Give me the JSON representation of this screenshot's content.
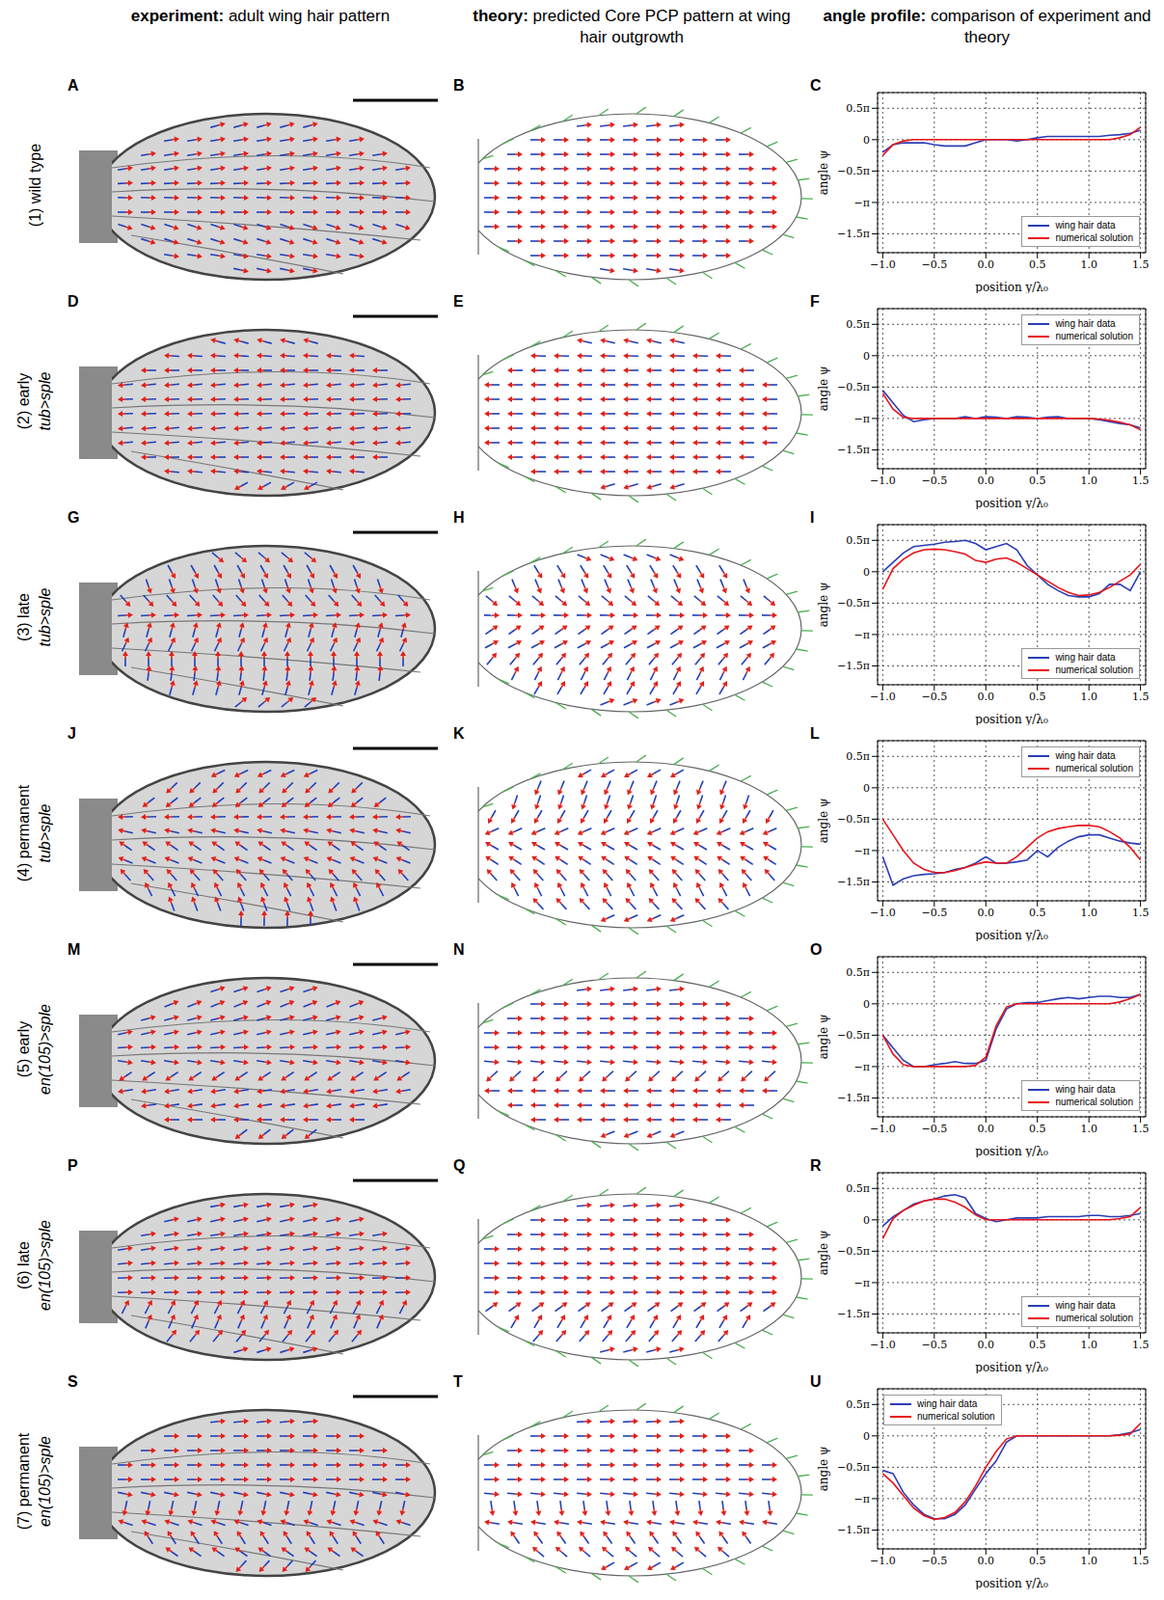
{
  "header": {
    "columns": [
      {
        "bold": "experiment:",
        "text": "adult wing hair pattern"
      },
      {
        "bold": "theory:",
        "text": "predicted Core PCP pattern at wing hair outgrowth"
      },
      {
        "bold": "angle profile:",
        "text": "comparison of experiment and theory"
      }
    ]
  },
  "rows": [
    {
      "label": "(1) wild type",
      "letters": [
        "A",
        "B",
        "C"
      ]
    },
    {
      "label": "(2) early",
      "genotype": "tub>sple",
      "letters": [
        "D",
        "E",
        "F"
      ]
    },
    {
      "label": "(3) late",
      "genotype": "tub>sple",
      "letters": [
        "G",
        "H",
        "I"
      ]
    },
    {
      "label": "(4) permanent",
      "genotype": "tub>sple",
      "letters": [
        "J",
        "K",
        "L"
      ]
    },
    {
      "label": "(5) early",
      "genotype": "en(105)>sple",
      "letters": [
        "M",
        "N",
        "O"
      ]
    },
    {
      "label": "(6) late",
      "genotype": "en(105)>sple",
      "letters": [
        "P",
        "Q",
        "R"
      ]
    },
    {
      "label": "(7) permanent",
      "genotype": "en(105)>sple",
      "letters": [
        "S",
        "T",
        "U"
      ]
    }
  ],
  "chart_data": [
    {
      "type": "line",
      "x_label": "position y/λ₀",
      "y_label": "angle ψ",
      "grid": true,
      "legend": "lower right",
      "xlim": [
        -1.05,
        1.55
      ],
      "ylim": [
        -1.8,
        0.75
      ],
      "xticks": [
        {
          "value": -1,
          "label": "−1.0"
        },
        {
          "value": -0.5,
          "label": "−0.5"
        },
        {
          "value": 0,
          "label": "0.0"
        },
        0.5,
        {
          "value": 1,
          "label": "1.0"
        },
        1.5
      ],
      "yticks": [
        {
          "value": 0.5,
          "label": "0.5π"
        },
        0,
        {
          "value": -0.5,
          "label": "−0.5π"
        },
        {
          "value": -1,
          "label": "−π"
        },
        {
          "value": -1.5,
          "label": "−1.5π"
        }
      ],
      "x": [
        -1,
        -0.9,
        -0.8,
        -0.7,
        -0.6,
        -0.5,
        -0.4,
        -0.3,
        -0.2,
        -0.1,
        0,
        0.1,
        0.2,
        0.3,
        0.4,
        0.5,
        0.6,
        0.7,
        0.8,
        0.9,
        1,
        1.1,
        1.2,
        1.3,
        1.4,
        1.5
      ],
      "series": [
        {
          "name": "wing hair data",
          "color": "#2a3db5",
          "values": [
            -0.2,
            -0.08,
            -0.05,
            -0.05,
            -0.05,
            -0.08,
            -0.1,
            -0.1,
            -0.1,
            -0.05,
            0,
            0,
            0,
            -0.02,
            0,
            0.03,
            0.05,
            0.05,
            0.05,
            0.05,
            0.05,
            0.05,
            0.07,
            0.08,
            0.1,
            0.15
          ]
        },
        {
          "name": "numerical solution",
          "color": "#e8141a",
          "values": [
            -0.25,
            -0.08,
            -0.02,
            0,
            0,
            0,
            0,
            0,
            0,
            0,
            0,
            0,
            0,
            0,
            0,
            0,
            0,
            0,
            0,
            0,
            0,
            0,
            0,
            0.03,
            0.08,
            0.2
          ]
        }
      ]
    },
    {
      "type": "line",
      "x_label": "position y/λ₀",
      "y_label": "angle ψ",
      "grid": true,
      "legend": "upper right",
      "xlim": [
        -1.05,
        1.55
      ],
      "ylim": [
        -1.8,
        0.75
      ],
      "xticks": [
        {
          "value": -1,
          "label": "−1.0"
        },
        {
          "value": -0.5,
          "label": "−0.5"
        },
        {
          "value": 0,
          "label": "0.0"
        },
        0.5,
        {
          "value": 1,
          "label": "1.0"
        },
        1.5
      ],
      "yticks": [
        {
          "value": 0.5,
          "label": "0.5π"
        },
        0,
        {
          "value": -0.5,
          "label": "−0.5π"
        },
        {
          "value": -1,
          "label": "−π"
        },
        {
          "value": -1.5,
          "label": "−1.5π"
        }
      ],
      "x": [
        -1,
        -0.9,
        -0.8,
        -0.7,
        -0.6,
        -0.5,
        -0.4,
        -0.3,
        -0.2,
        -0.1,
        0,
        0.1,
        0.2,
        0.3,
        0.4,
        0.5,
        0.6,
        0.7,
        0.8,
        0.9,
        1,
        1.1,
        1.2,
        1.3,
        1.4,
        1.5
      ],
      "series": [
        {
          "name": "wing hair data",
          "color": "#2a3db5",
          "values": [
            -0.55,
            -0.75,
            -0.95,
            -1.05,
            -1.02,
            -1,
            -1,
            -1,
            -0.97,
            -1,
            -0.97,
            -0.98,
            -1,
            -0.97,
            -0.98,
            -1,
            -0.98,
            -0.97,
            -1,
            -1,
            -1,
            -1.02,
            -1.05,
            -1.08,
            -1.1,
            -1.15
          ]
        },
        {
          "name": "numerical solution",
          "color": "#e8141a",
          "values": [
            -0.6,
            -0.85,
            -0.98,
            -1,
            -1,
            -1,
            -1,
            -1,
            -1,
            -1,
            -1,
            -1,
            -1,
            -1,
            -1,
            -1,
            -1,
            -1,
            -1,
            -1,
            -1,
            -1.01,
            -1.03,
            -1.06,
            -1.1,
            -1.18
          ]
        }
      ]
    },
    {
      "type": "line",
      "x_label": "position y/λ₀",
      "y_label": "angle ψ",
      "grid": true,
      "legend": "lower right",
      "xlim": [
        -1.05,
        1.55
      ],
      "ylim": [
        -1.8,
        0.75
      ],
      "xticks": [
        {
          "value": -1,
          "label": "−1.0"
        },
        {
          "value": -0.5,
          "label": "−0.5"
        },
        {
          "value": 0,
          "label": "0.0"
        },
        0.5,
        {
          "value": 1,
          "label": "1.0"
        },
        1.5
      ],
      "yticks": [
        {
          "value": 0.5,
          "label": "0.5π"
        },
        0,
        {
          "value": -0.5,
          "label": "−0.5π"
        },
        {
          "value": -1,
          "label": "−π"
        },
        {
          "value": -1.5,
          "label": "−1.5π"
        }
      ],
      "x": [
        -1,
        -0.9,
        -0.8,
        -0.7,
        -0.6,
        -0.5,
        -0.4,
        -0.3,
        -0.2,
        -0.1,
        0,
        0.1,
        0.2,
        0.3,
        0.4,
        0.5,
        0.6,
        0.7,
        0.8,
        0.9,
        1,
        1.1,
        1.2,
        1.3,
        1.4,
        1.5
      ],
      "series": [
        {
          "name": "wing hair data",
          "color": "#2a3db5",
          "values": [
            0,
            0.15,
            0.3,
            0.4,
            0.42,
            0.44,
            0.47,
            0.48,
            0.5,
            0.45,
            0.35,
            0.4,
            0.45,
            0.35,
            0.1,
            -0.05,
            -0.2,
            -0.3,
            -0.38,
            -0.4,
            -0.4,
            -0.35,
            -0.2,
            -0.2,
            -0.3,
            0
          ]
        },
        {
          "name": "numerical solution",
          "color": "#e8141a",
          "values": [
            -0.28,
            0.05,
            0.2,
            0.3,
            0.35,
            0.36,
            0.35,
            0.32,
            0.28,
            0.18,
            0.15,
            0.2,
            0.22,
            0.15,
            0.05,
            -0.05,
            -0.15,
            -0.25,
            -0.33,
            -0.38,
            -0.37,
            -0.33,
            -0.25,
            -0.15,
            -0.05,
            0.12
          ]
        }
      ]
    },
    {
      "type": "line",
      "x_label": "position y/λ₀",
      "y_label": "angle ψ",
      "grid": true,
      "legend": "upper right",
      "xlim": [
        -1.05,
        1.55
      ],
      "ylim": [
        -1.8,
        0.75
      ],
      "xticks": [
        {
          "value": -1,
          "label": "−1.0"
        },
        {
          "value": -0.5,
          "label": "−0.5"
        },
        {
          "value": 0,
          "label": "0.0"
        },
        0.5,
        {
          "value": 1,
          "label": "1.0"
        },
        1.5
      ],
      "yticks": [
        {
          "value": 0.5,
          "label": "0.5π"
        },
        0,
        {
          "value": -0.5,
          "label": "−0.5π"
        },
        {
          "value": -1,
          "label": "−π"
        },
        {
          "value": -1.5,
          "label": "−1.5π"
        }
      ],
      "x": [
        -1,
        -0.9,
        -0.8,
        -0.7,
        -0.6,
        -0.5,
        -0.4,
        -0.3,
        -0.2,
        -0.1,
        0,
        0.1,
        0.2,
        0.3,
        0.4,
        0.5,
        0.6,
        0.7,
        0.8,
        0.9,
        1,
        1.1,
        1.2,
        1.3,
        1.4,
        1.5
      ],
      "series": [
        {
          "name": "wing hair data",
          "color": "#2a3db5",
          "values": [
            -1.1,
            -1.55,
            -1.45,
            -1.4,
            -1.38,
            -1.37,
            -1.35,
            -1.3,
            -1.27,
            -1.2,
            -1.1,
            -1.2,
            -1.2,
            -1.18,
            -1.15,
            -1,
            -1.1,
            -0.95,
            -0.85,
            -0.78,
            -0.75,
            -0.75,
            -0.8,
            -0.85,
            -0.88,
            -0.9
          ]
        },
        {
          "name": "numerical solution",
          "color": "#e8141a",
          "values": [
            -0.5,
            -0.75,
            -1,
            -1.2,
            -1.3,
            -1.35,
            -1.35,
            -1.32,
            -1.27,
            -1.22,
            -1.18,
            -1.2,
            -1.2,
            -1.1,
            -0.95,
            -0.8,
            -0.7,
            -0.65,
            -0.62,
            -0.6,
            -0.6,
            -0.62,
            -0.7,
            -0.8,
            -0.95,
            -1.15
          ]
        }
      ]
    },
    {
      "type": "line",
      "x_label": "position y/λ₀",
      "y_label": "angle ψ",
      "grid": true,
      "legend": "lower right",
      "xlim": [
        -1.05,
        1.55
      ],
      "ylim": [
        -1.8,
        0.75
      ],
      "xticks": [
        {
          "value": -1,
          "label": "−1.0"
        },
        {
          "value": -0.5,
          "label": "−0.5"
        },
        {
          "value": 0,
          "label": "0.0"
        },
        0.5,
        {
          "value": 1,
          "label": "1.0"
        },
        1.5
      ],
      "yticks": [
        {
          "value": 0.5,
          "label": "0.5π"
        },
        0,
        {
          "value": -0.5,
          "label": "−0.5π"
        },
        {
          "value": -1,
          "label": "−π"
        },
        {
          "value": -1.5,
          "label": "−1.5π"
        }
      ],
      "x": [
        -1,
        -0.9,
        -0.8,
        -0.7,
        -0.6,
        -0.5,
        -0.4,
        -0.3,
        -0.2,
        -0.1,
        0,
        0.1,
        0.2,
        0.3,
        0.4,
        0.5,
        0.6,
        0.7,
        0.8,
        0.9,
        1,
        1.1,
        1.2,
        1.3,
        1.4,
        1.5
      ],
      "series": [
        {
          "name": "wing hair data",
          "color": "#2a3db5",
          "values": [
            -0.5,
            -0.7,
            -0.9,
            -1,
            -1,
            -0.97,
            -0.95,
            -0.92,
            -0.95,
            -0.95,
            -0.9,
            -0.4,
            -0.08,
            0,
            0.02,
            0.02,
            0.05,
            0.08,
            0.1,
            0.08,
            0.1,
            0.12,
            0.12,
            0.1,
            0.1,
            0.15
          ]
        },
        {
          "name": "numerical solution",
          "color": "#e8141a",
          "values": [
            -0.5,
            -0.8,
            -0.97,
            -1,
            -1,
            -1,
            -1,
            -1,
            -1,
            -0.98,
            -0.85,
            -0.35,
            -0.05,
            0,
            0,
            0,
            0,
            0,
            0,
            0,
            0,
            0,
            0,
            0.03,
            0.08,
            0.15
          ]
        }
      ]
    },
    {
      "type": "line",
      "x_label": "position y/λ₀",
      "y_label": "angle ψ",
      "grid": true,
      "legend": "lower right",
      "xlim": [
        -1.05,
        1.55
      ],
      "ylim": [
        -1.8,
        0.75
      ],
      "xticks": [
        {
          "value": -1,
          "label": "−1.0"
        },
        {
          "value": -0.5,
          "label": "−0.5"
        },
        {
          "value": 0,
          "label": "0.0"
        },
        0.5,
        {
          "value": 1,
          "label": "1.0"
        },
        1.5
      ],
      "yticks": [
        {
          "value": 0.5,
          "label": "0.5π"
        },
        0,
        {
          "value": -0.5,
          "label": "−0.5π"
        },
        {
          "value": -1,
          "label": "−π"
        },
        {
          "value": -1.5,
          "label": "−1.5π"
        }
      ],
      "x": [
        -1,
        -0.9,
        -0.8,
        -0.7,
        -0.6,
        -0.5,
        -0.4,
        -0.3,
        -0.2,
        -0.1,
        0,
        0.1,
        0.2,
        0.3,
        0.4,
        0.5,
        0.6,
        0.7,
        0.8,
        0.9,
        1,
        1.1,
        1.2,
        1.3,
        1.4,
        1.5
      ],
      "series": [
        {
          "name": "wing hair data",
          "color": "#2a3db5",
          "values": [
            -0.1,
            0.05,
            0.15,
            0.25,
            0.3,
            0.33,
            0.38,
            0.4,
            0.35,
            0.1,
            0.02,
            -0.03,
            0,
            0.03,
            0.03,
            0.03,
            0.05,
            0.05,
            0.05,
            0.05,
            0.07,
            0.07,
            0.05,
            0.05,
            0.07,
            0.1
          ]
        },
        {
          "name": "numerical solution",
          "color": "#e8141a",
          "values": [
            -0.3,
            0.02,
            0.15,
            0.23,
            0.3,
            0.33,
            0.33,
            0.28,
            0.2,
            0.08,
            0,
            0,
            0,
            0,
            0,
            0,
            0,
            0,
            0,
            0,
            0,
            0,
            0,
            0.02,
            0.05,
            0.2
          ]
        }
      ]
    },
    {
      "type": "line",
      "x_label": "position y/λ₀",
      "y_label": "angle ψ",
      "grid": true,
      "legend": "upper left",
      "xlim": [
        -1.05,
        1.55
      ],
      "ylim": [
        -1.8,
        0.75
      ],
      "xticks": [
        {
          "value": -1,
          "label": "−1.0"
        },
        {
          "value": -0.5,
          "label": "−0.5"
        },
        {
          "value": 0,
          "label": "0.0"
        },
        0.5,
        {
          "value": 1,
          "label": "1.0"
        },
        1.5
      ],
      "yticks": [
        {
          "value": 0.5,
          "label": "0.5π"
        },
        0,
        {
          "value": -0.5,
          "label": "−0.5π"
        },
        {
          "value": -1,
          "label": "−π"
        },
        {
          "value": -1.5,
          "label": "−1.5π"
        }
      ],
      "x": [
        -1,
        -0.9,
        -0.8,
        -0.7,
        -0.6,
        -0.5,
        -0.4,
        -0.3,
        -0.2,
        -0.1,
        0,
        0.1,
        0.2,
        0.3,
        0.4,
        0.5,
        0.6,
        0.7,
        0.8,
        0.9,
        1,
        1.1,
        1.2,
        1.3,
        1.4,
        1.5
      ],
      "series": [
        {
          "name": "wing hair data",
          "color": "#2a3db5",
          "values": [
            -0.55,
            -0.6,
            -0.9,
            -1.1,
            -1.25,
            -1.32,
            -1.32,
            -1.25,
            -1.1,
            -0.85,
            -0.6,
            -0.4,
            -0.1,
            0,
            0,
            0,
            0,
            0,
            0,
            0,
            0,
            0,
            0,
            0.02,
            0.05,
            0.1
          ]
        },
        {
          "name": "numerical solution",
          "color": "#e8141a",
          "values": [
            -0.6,
            -0.75,
            -0.95,
            -1.15,
            -1.27,
            -1.33,
            -1.3,
            -1.22,
            -1.05,
            -0.8,
            -0.5,
            -0.25,
            -0.05,
            0,
            0,
            0,
            0,
            0,
            0,
            0,
            0,
            0,
            0,
            0.01,
            0.03,
            0.2
          ]
        }
      ]
    }
  ]
}
